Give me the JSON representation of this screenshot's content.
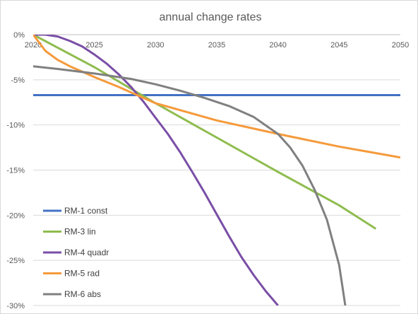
{
  "chart_data": {
    "type": "line",
    "title": "annual change rates",
    "xlabel": "",
    "ylabel": "",
    "xlim": [
      2020,
      2050
    ],
    "ylim": [
      -30,
      0
    ],
    "x_ticks": [
      "2020",
      "2025",
      "2030",
      "2035",
      "2040",
      "2045",
      "2050"
    ],
    "y_ticks": [
      "0%",
      "-5%",
      "-10%",
      "-15%",
      "-20%",
      "-25%",
      "-30%"
    ],
    "grid": "horizontal",
    "legend": "bottom-left",
    "series": [
      {
        "name": "RM-1 const",
        "color": "#4472c4",
        "points": [
          [
            2020,
            -6.7
          ],
          [
            2050,
            -6.7
          ]
        ]
      },
      {
        "name": "RM-3 lin",
        "color": "#8fbc4f",
        "points": [
          [
            2020,
            0
          ],
          [
            2025,
            -3.6
          ],
          [
            2030,
            -7.6
          ],
          [
            2035,
            -11.4
          ],
          [
            2040,
            -15.2
          ],
          [
            2045,
            -18.9
          ],
          [
            2048,
            -21.5
          ]
        ]
      },
      {
        "name": "RM-4 quadr",
        "color": "#7a4ea6",
        "points": [
          [
            2020,
            0
          ],
          [
            2021,
            0
          ],
          [
            2022,
            -0.2
          ],
          [
            2023,
            -0.7
          ],
          [
            2024,
            -1.3
          ],
          [
            2025,
            -2.2
          ],
          [
            2026,
            -3.2
          ],
          [
            2027,
            -4.4
          ],
          [
            2028,
            -5.8
          ],
          [
            2029,
            -7.4
          ],
          [
            2030,
            -9.2
          ],
          [
            2031,
            -11.0
          ],
          [
            2032,
            -13.0
          ],
          [
            2033,
            -15.2
          ],
          [
            2034,
            -17.5
          ],
          [
            2035,
            -19.9
          ],
          [
            2036,
            -22.3
          ],
          [
            2037,
            -24.6
          ],
          [
            2038,
            -26.6
          ],
          [
            2039,
            -28.4
          ],
          [
            2040,
            -30.0
          ]
        ]
      },
      {
        "name": "RM-5 rad",
        "color": "#f59a3b",
        "points": [
          [
            2020,
            0
          ],
          [
            2021,
            -1.8
          ],
          [
            2022,
            -2.8
          ],
          [
            2023,
            -3.5
          ],
          [
            2024,
            -4.1
          ],
          [
            2025,
            -4.7
          ],
          [
            2027,
            -5.8
          ],
          [
            2030,
            -7.6
          ],
          [
            2035,
            -9.5
          ],
          [
            2040,
            -11.0
          ],
          [
            2045,
            -12.4
          ],
          [
            2050,
            -13.6
          ]
        ]
      },
      {
        "name": "RM-6 abs",
        "color": "#808080",
        "points": [
          [
            2020,
            -3.5
          ],
          [
            2022,
            -3.8
          ],
          [
            2025,
            -4.3
          ],
          [
            2028,
            -4.9
          ],
          [
            2030,
            -5.5
          ],
          [
            2032,
            -6.2
          ],
          [
            2034,
            -7.0
          ],
          [
            2036,
            -7.9
          ],
          [
            2038,
            -9.1
          ],
          [
            2040,
            -11.0
          ],
          [
            2041,
            -12.5
          ],
          [
            2042,
            -14.5
          ],
          [
            2043,
            -17.2
          ],
          [
            2044,
            -20.5
          ],
          [
            2045,
            -25.5
          ],
          [
            2045.5,
            -30.0
          ]
        ]
      }
    ]
  }
}
